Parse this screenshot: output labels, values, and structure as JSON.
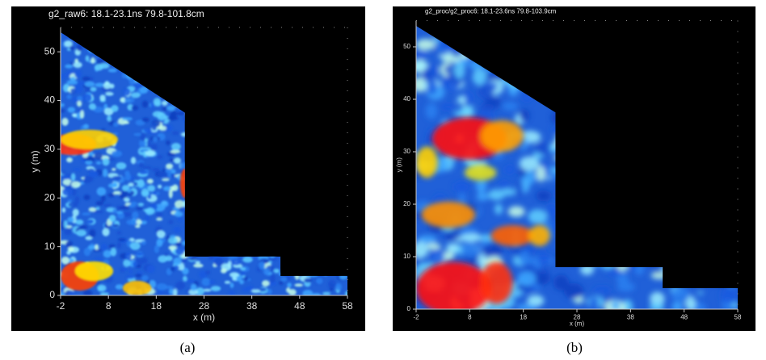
{
  "chart_data": [
    {
      "type": "heatmap",
      "title": "g2_raw6:  18.1-23.1ns  79.8-101.8cm",
      "x_label": "x (m)",
      "y_label": "y (m)",
      "caption": "(a)",
      "xlim": [
        -2,
        58
      ],
      "ylim": [
        0,
        55
      ],
      "xticks": [
        -2,
        8,
        18,
        28,
        38,
        48,
        58
      ],
      "yticks": [
        0,
        10,
        20,
        30,
        40,
        50
      ]
    },
    {
      "type": "heatmap",
      "title": "g2_proc/g2_proc6:  18.1-23.6ns  79.8-103.9cm",
      "x_label": "x (m)",
      "y_label": "y (m)",
      "caption": "(b)",
      "xlim": [
        -2,
        58
      ],
      "ylim": [
        0,
        55
      ],
      "xticks": [
        -2,
        8,
        18,
        28,
        38,
        48,
        58
      ],
      "yticks": [
        0,
        10,
        20,
        30,
        40,
        50
      ]
    }
  ]
}
